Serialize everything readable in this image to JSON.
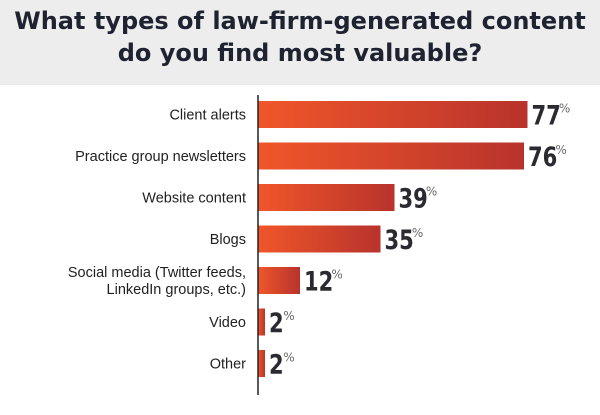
{
  "chart_data": {
    "type": "bar",
    "orientation": "horizontal",
    "title_lines": [
      "What types of law-firm-generated content",
      "do you find most valuable?"
    ],
    "categories": [
      [
        "Client alerts"
      ],
      [
        "Practice group newsletters"
      ],
      [
        "Website content"
      ],
      [
        "Blogs"
      ],
      [
        "Social media (Twitter feeds,",
        "LinkedIn groups, etc.)"
      ],
      [
        "Video"
      ],
      [
        "Other"
      ]
    ],
    "values": [
      77,
      76,
      39,
      35,
      12,
      2,
      2
    ],
    "value_suffix": "%",
    "xlim": [
      0,
      100
    ],
    "grid": false,
    "bar_color_start": "#f0562a",
    "bar_color_end": "#b8332c",
    "axis_color": "#222222"
  }
}
